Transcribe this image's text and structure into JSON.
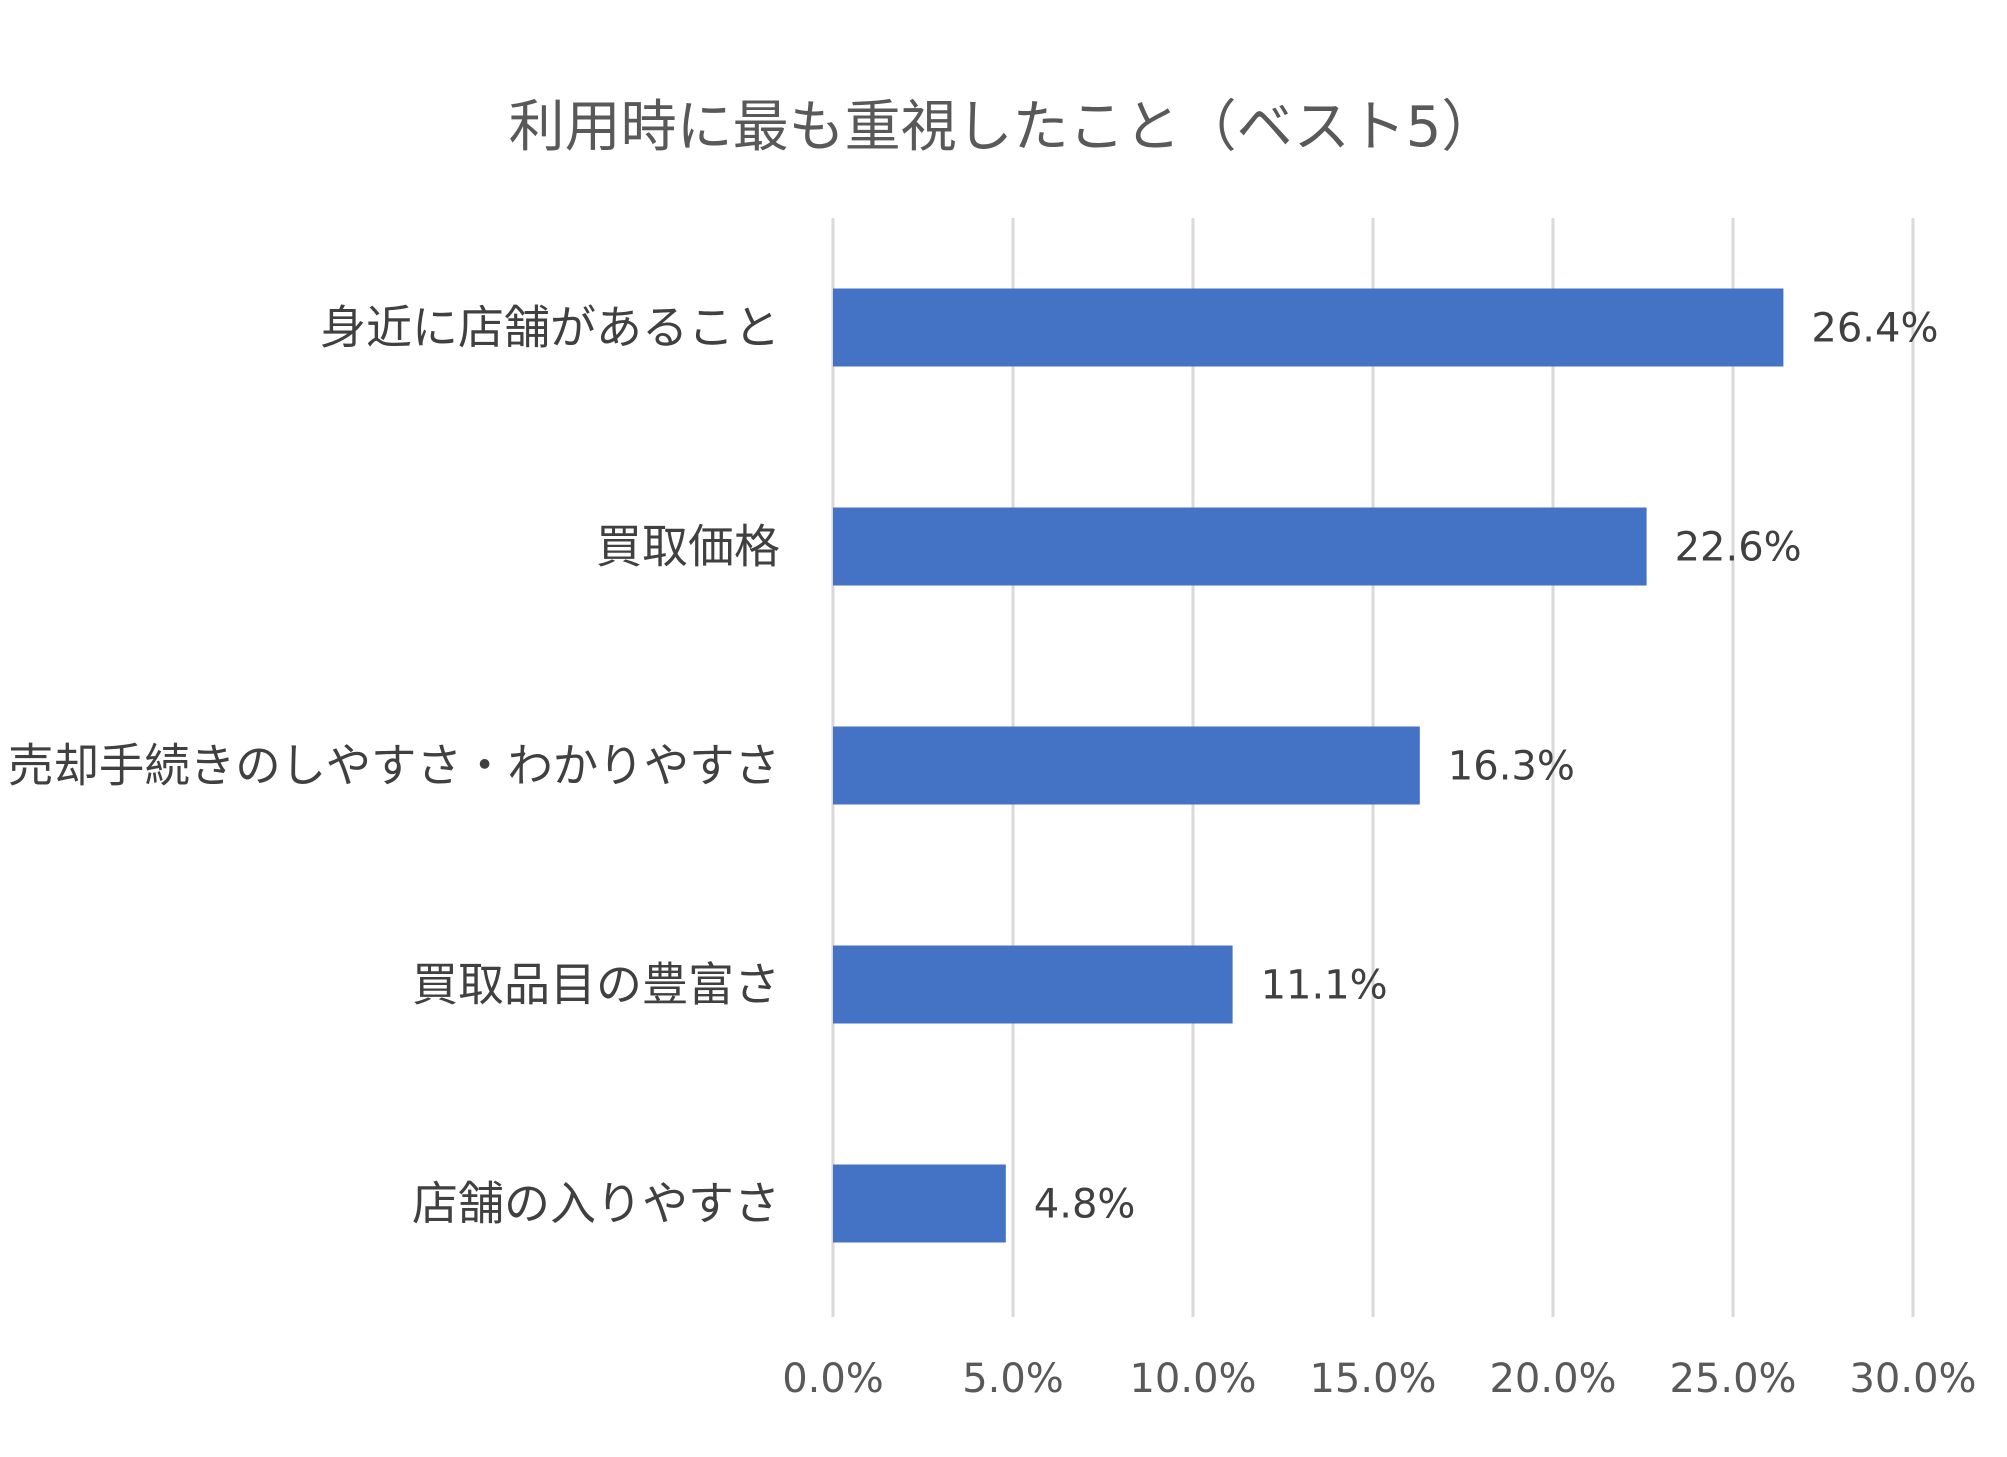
{
  "chart_data": {
    "type": "bar",
    "orientation": "horizontal",
    "title": "利用時に最も重視したこと（ベスト5）",
    "categories": [
      "身近に店舗があること",
      "買取価格",
      "売却手続きのしやすさ・わかりやすさ",
      "買取品目の豊富さ",
      "店舗の入りやすさ"
    ],
    "values": [
      26.4,
      22.6,
      16.3,
      11.1,
      4.8
    ],
    "value_labels": [
      "26.4%",
      "22.6%",
      "16.3%",
      "11.1%",
      "4.8%"
    ],
    "xlim": [
      0,
      30
    ],
    "xticks": [
      0,
      5,
      10,
      15,
      20,
      25,
      30
    ],
    "xtick_labels": [
      "0.0%",
      "5.0%",
      "10.0%",
      "15.0%",
      "20.0%",
      "25.0%",
      "30.0%"
    ],
    "grid": true,
    "legend": "none",
    "bar_color": "#4472c4"
  }
}
